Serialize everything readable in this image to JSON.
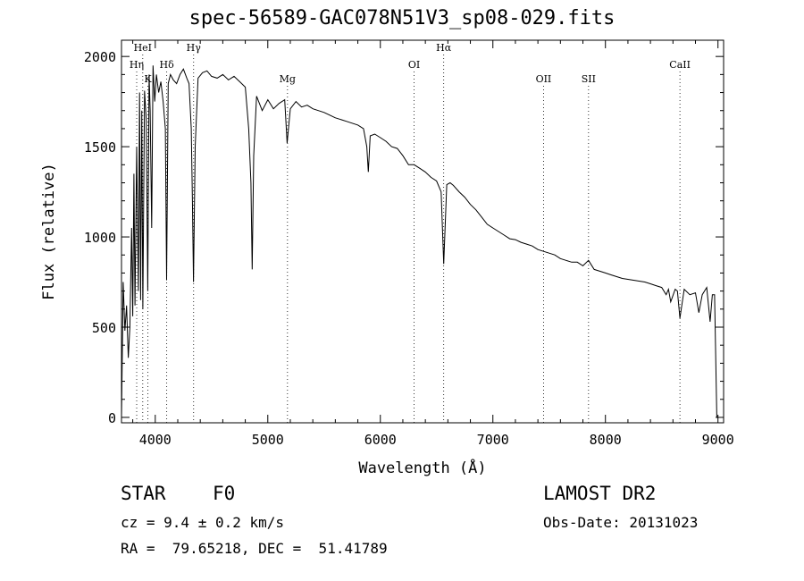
{
  "chart_data": {
    "type": "line",
    "title": "spec-56589-GAC078N51V3_sp08-029.fits",
    "xlabel": "Wavelength (Å)",
    "ylabel": "Flux (relative)",
    "xlim": [
      3700,
      9050
    ],
    "ylim": [
      -30,
      2090
    ],
    "xticks": [
      4000,
      5000,
      6000,
      7000,
      8000,
      9000
    ],
    "yticks": [
      0,
      500,
      1000,
      1500,
      2000
    ],
    "grid": false,
    "series": [
      {
        "x": [
          3700,
          3715,
          3730,
          3745,
          3760,
          3775,
          3790,
          3800,
          3810,
          3820,
          3835,
          3850,
          3860,
          3870,
          3880,
          3890,
          3905,
          3920,
          3933,
          3945,
          3955,
          3968,
          3980,
          3995,
          4010,
          4030,
          4050,
          4070,
          4090,
          4101,
          4115,
          4135,
          4160,
          4190,
          4220,
          4250,
          4280,
          4300,
          4320,
          4330,
          4340,
          4355,
          4380,
          4420,
          4460,
          4500,
          4550,
          4600,
          4650,
          4700,
          4750,
          4800,
          4830,
          4850,
          4861,
          4875,
          4900,
          4950,
          5000,
          5050,
          5100,
          5150,
          5172,
          5200,
          5250,
          5300,
          5350,
          5400,
          5500,
          5600,
          5700,
          5800,
          5850,
          5880,
          5893,
          5910,
          5950,
          6000,
          6050,
          6100,
          6150,
          6200,
          6250,
          6300,
          6350,
          6400,
          6450,
          6500,
          6540,
          6563,
          6590,
          6620,
          6650,
          6700,
          6750,
          6800,
          6850,
          6900,
          6950,
          7000,
          7050,
          7100,
          7150,
          7200,
          7250,
          7300,
          7350,
          7400,
          7450,
          7500,
          7550,
          7600,
          7650,
          7700,
          7750,
          7800,
          7850,
          7900,
          7950,
          8000,
          8050,
          8100,
          8150,
          8200,
          8250,
          8300,
          8350,
          8400,
          8450,
          8500,
          8540,
          8560,
          8580,
          8620,
          8640,
          8662,
          8700,
          8750,
          8800,
          8830,
          8860,
          8900,
          8930,
          8950,
          8970,
          8990,
          9000
        ],
        "y": [
          0,
          750,
          480,
          620,
          330,
          500,
          1050,
          560,
          1350,
          620,
          1500,
          700,
          1800,
          650,
          1700,
          600,
          1810,
          1650,
          700,
          1900,
          1700,
          1050,
          1950,
          1750,
          1900,
          1800,
          1860,
          1750,
          1600,
          760,
          1850,
          1900,
          1870,
          1850,
          1900,
          1930,
          1880,
          1850,
          1600,
          1200,
          750,
          1500,
          1880,
          1910,
          1920,
          1890,
          1880,
          1900,
          1870,
          1890,
          1860,
          1830,
          1600,
          1300,
          820,
          1450,
          1780,
          1700,
          1760,
          1710,
          1740,
          1760,
          1520,
          1710,
          1750,
          1720,
          1730,
          1710,
          1690,
          1660,
          1640,
          1620,
          1600,
          1500,
          1360,
          1560,
          1570,
          1550,
          1530,
          1500,
          1490,
          1450,
          1400,
          1400,
          1380,
          1360,
          1330,
          1310,
          1250,
          850,
          1290,
          1300,
          1285,
          1250,
          1220,
          1180,
          1150,
          1110,
          1070,
          1050,
          1030,
          1010,
          990,
          985,
          970,
          960,
          950,
          930,
          920,
          910,
          900,
          880,
          870,
          860,
          860,
          840,
          870,
          820,
          810,
          800,
          790,
          780,
          770,
          765,
          760,
          755,
          750,
          740,
          730,
          720,
          680,
          710,
          640,
          710,
          700,
          550,
          710,
          680,
          690,
          580,
          680,
          720,
          530,
          680,
          680,
          0,
          0
        ]
      }
    ],
    "line_ids": [
      {
        "label": "HeI",
        "wavelength": 3889
      },
      {
        "label": "Hη",
        "wavelength": 3835
      },
      {
        "label": "K",
        "wavelength": 3934
      },
      {
        "label": "Hδ",
        "wavelength": 4102
      },
      {
        "label": "Hγ",
        "wavelength": 4341
      },
      {
        "label": "Mg",
        "wavelength": 5175
      },
      {
        "label": "OI",
        "wavelength": 6300
      },
      {
        "label": "Hα",
        "wavelength": 6563
      },
      {
        "label": "OII",
        "wavelength": 7450
      },
      {
        "label": "SII",
        "wavelength": 7850
      },
      {
        "label": "CaII",
        "wavelength": 8662
      }
    ]
  },
  "info": {
    "obj_class": "STAR",
    "obj_subclass": "F0",
    "survey": "LAMOST DR2",
    "cz": "cz = 9.4 ± 0.2 km/s",
    "obs_date": "Obs-Date: 20131023",
    "radec": "RA =  79.65218, DEC =  51.41789"
  }
}
